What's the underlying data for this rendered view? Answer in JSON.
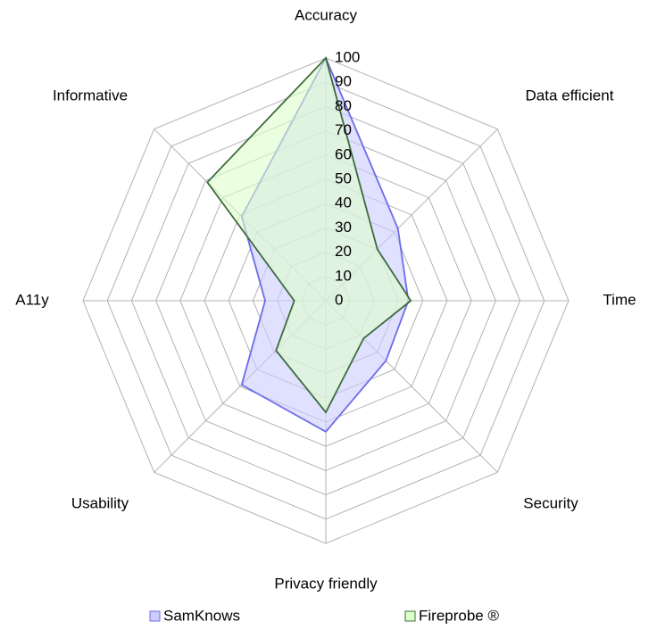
{
  "chart_data": {
    "type": "radar",
    "categories": [
      "Accuracy",
      "Data efficient",
      "Time",
      "Security",
      "Privacy friendly",
      "Usability",
      "A11y",
      "Informative"
    ],
    "series": [
      {
        "name": "SamKnows",
        "color": "#6b6bea",
        "fill": "#ccccff",
        "values": [
          100,
          42,
          34,
          35,
          54,
          49,
          25,
          49
        ]
      },
      {
        "name": "Fireprobe ®",
        "color": "#3d6b3d",
        "fill": "#ddffcc",
        "values": [
          100,
          30,
          35,
          22,
          46,
          29,
          13,
          69
        ]
      }
    ],
    "ylim": [
      0,
      100
    ],
    "yticks": [
      0,
      10,
      20,
      30,
      40,
      50,
      60,
      70,
      80,
      90,
      100
    ],
    "grid": true
  }
}
